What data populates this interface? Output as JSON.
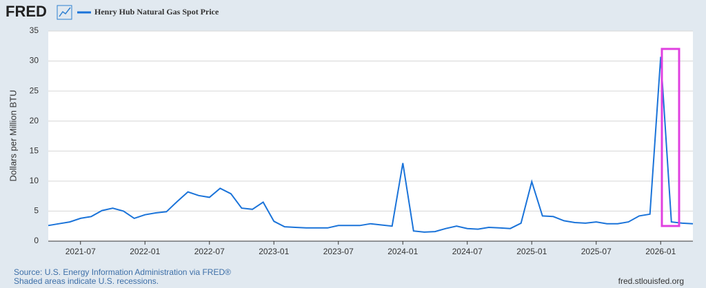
{
  "chart_data": {
    "type": "line",
    "logo": "FRED",
    "ylabel": "Dollars per Million BTU",
    "source": "Source: U.S. Energy Information Administration via FRED®",
    "note": "Shaded areas indicate U.S. recessions.",
    "credit": "fred.stlouisfed.org",
    "x": [
      "2021-04",
      "2021-05",
      "2021-06",
      "2021-07",
      "2021-08",
      "2021-09",
      "2021-10",
      "2021-11",
      "2021-12",
      "2022-01",
      "2022-02",
      "2022-03",
      "2022-04",
      "2022-05",
      "2022-06",
      "2022-07",
      "2022-08",
      "2022-09",
      "2022-10",
      "2022-11",
      "2022-12",
      "2023-01",
      "2023-02",
      "2023-03",
      "2023-04",
      "2023-05",
      "2023-06",
      "2023-07",
      "2023-08",
      "2023-09",
      "2023-10",
      "2023-11",
      "2023-12",
      "2024-01",
      "2024-02",
      "2024-03",
      "2024-04",
      "2024-05",
      "2024-06",
      "2024-07",
      "2024-08",
      "2024-09",
      "2024-10",
      "2024-11",
      "2024-12",
      "2025-01",
      "2025-02",
      "2025-03",
      "2025-04",
      "2025-05",
      "2025-06",
      "2025-07",
      "2025-08",
      "2025-09",
      "2025-10",
      "2025-11",
      "2025-12",
      "2026-01",
      "2026-02",
      "2026-03",
      "2026-04"
    ],
    "series": [
      {
        "name": "Henry Hub Natural Gas Spot Price",
        "color": "#1a73d9",
        "values": [
          2.6,
          2.9,
          3.2,
          3.8,
          4.1,
          5.1,
          5.5,
          5.0,
          3.8,
          4.4,
          4.7,
          4.9,
          6.6,
          8.2,
          7.6,
          7.3,
          8.8,
          7.9,
          5.5,
          5.3,
          6.5,
          3.3,
          2.4,
          2.3,
          2.2,
          2.2,
          2.2,
          2.6,
          2.6,
          2.6,
          2.9,
          2.7,
          2.5,
          13.0,
          1.7,
          1.5,
          1.6,
          2.1,
          2.5,
          2.1,
          2.0,
          2.3,
          2.2,
          2.1,
          3.0,
          9.9,
          4.2,
          4.1,
          3.4,
          3.1,
          3.0,
          3.2,
          2.9,
          2.9,
          3.2,
          4.2,
          4.5,
          30.7,
          3.2,
          3.0,
          2.9
        ]
      }
    ],
    "xlim": [
      "2021-04",
      "2026-04"
    ],
    "xticks": [
      "2021-07",
      "2022-01",
      "2022-07",
      "2023-01",
      "2023-07",
      "2024-01",
      "2024-07",
      "2025-01",
      "2025-07",
      "2026-01"
    ],
    "ylim": [
      0,
      35
    ],
    "yticks": [
      0,
      5,
      10,
      15,
      20,
      25,
      30,
      35
    ],
    "grid": true
  }
}
